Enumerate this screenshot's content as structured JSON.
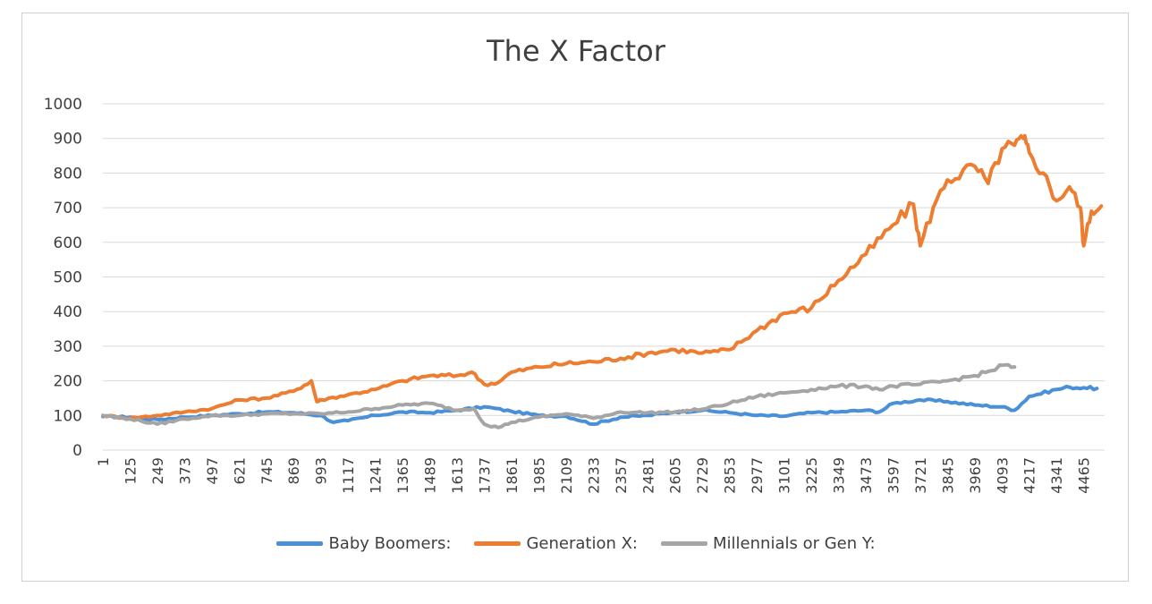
{
  "chart_data": {
    "type": "line",
    "title": "The X Factor",
    "xlabel": "",
    "ylabel": "",
    "ylim": [
      0,
      1000
    ],
    "xlim": [
      1,
      4560
    ],
    "y_ticks": [
      "0",
      "100",
      "200",
      "300",
      "400",
      "500",
      "600",
      "700",
      "800",
      "900",
      "1000"
    ],
    "x_ticks": [
      "1",
      "125",
      "249",
      "373",
      "497",
      "621",
      "745",
      "869",
      "993",
      "1117",
      "1241",
      "1365",
      "1489",
      "1613",
      "1737",
      "1861",
      "1985",
      "2109",
      "2233",
      "2357",
      "2481",
      "2605",
      "2729",
      "2853",
      "2977",
      "3101",
      "3225",
      "3349",
      "3473",
      "3597",
      "3721",
      "3845",
      "3969",
      "4093",
      "4217",
      "4341",
      "4465"
    ],
    "grid": true,
    "legend_position": "bottom",
    "series": [
      {
        "name": "Baby Boomers:",
        "color": "#4a90d9",
        "x": [
          1,
          125,
          249,
          373,
          497,
          621,
          745,
          869,
          993,
          1050,
          1117,
          1241,
          1365,
          1489,
          1613,
          1737,
          1861,
          1985,
          2109,
          2233,
          2357,
          2481,
          2605,
          2729,
          2853,
          2977,
          3101,
          3225,
          3349,
          3473,
          3535,
          3597,
          3721,
          3845,
          3969,
          4093,
          4150,
          4217,
          4341,
          4400,
          4465,
          4525
        ],
        "y": [
          97,
          95,
          88,
          95,
          100,
          105,
          110,
          108,
          100,
          80,
          85,
          100,
          110,
          108,
          115,
          125,
          112,
          100,
          98,
          75,
          95,
          100,
          110,
          115,
          108,
          100,
          98,
          108,
          110,
          115,
          110,
          135,
          145,
          140,
          130,
          125,
          115,
          155,
          175,
          182,
          180,
          178
        ]
      },
      {
        "name": "Generation X:",
        "color": "#ed7d31",
        "x": [
          1,
          125,
          249,
          373,
          497,
          621,
          745,
          869,
          950,
          975,
          993,
          1117,
          1241,
          1365,
          1489,
          1613,
          1680,
          1737,
          1800,
          1861,
          1985,
          2109,
          2233,
          2357,
          2481,
          2605,
          2729,
          2800,
          2853,
          2977,
          3101,
          3225,
          3349,
          3473,
          3597,
          3690,
          3721,
          3780,
          3845,
          3969,
          4030,
          4093,
          4150,
          4190,
          4217,
          4280,
          4341,
          4400,
          4450,
          4465,
          4500,
          4545
        ],
        "y": [
          100,
          92,
          100,
          110,
          120,
          145,
          150,
          170,
          200,
          140,
          145,
          160,
          175,
          200,
          215,
          215,
          225,
          190,
          195,
          225,
          240,
          250,
          255,
          265,
          280,
          290,
          280,
          285,
          290,
          345,
          395,
          410,
          490,
          565,
          650,
          710,
          590,
          700,
          780,
          820,
          770,
          870,
          880,
          900,
          860,
          800,
          720,
          760,
          700,
          590,
          690,
          705
        ]
      },
      {
        "name": "Millennials or Gen Y:",
        "color": "#a5a5a5",
        "x": [
          1,
          125,
          249,
          373,
          497,
          621,
          745,
          869,
          993,
          1117,
          1241,
          1365,
          1489,
          1613,
          1690,
          1737,
          1800,
          1861,
          1985,
          2109,
          2233,
          2357,
          2481,
          2605,
          2729,
          2853,
          2977,
          3101,
          3225,
          3349,
          3473,
          3535,
          3597,
          3721,
          3845,
          3969,
          4050,
          4093,
          4150
        ],
        "y": [
          100,
          90,
          75,
          90,
          100,
          100,
          105,
          105,
          105,
          110,
          120,
          130,
          135,
          115,
          120,
          75,
          65,
          80,
          95,
          105,
          92,
          110,
          108,
          110,
          118,
          135,
          155,
          165,
          175,
          185,
          185,
          175,
          185,
          190,
          200,
          215,
          230,
          245,
          240
        ]
      }
    ]
  }
}
